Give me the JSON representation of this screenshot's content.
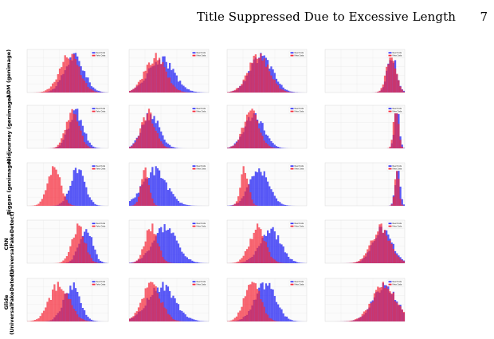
{
  "header": {
    "running_title": "Title Suppressed Due to Excessive Length",
    "page_number": "7"
  },
  "figure": {
    "legend": [
      "Real Data",
      "Fake Data"
    ],
    "colors": {
      "real": "#3b3bf5",
      "fake": "#f52a3a",
      "overlap": "#8e1a44"
    },
    "rows": [
      {
        "label": "ADM (genimage)"
      },
      {
        "label": "Midjourney (genimage)"
      },
      {
        "label": "Biggan (genimage)"
      },
      {
        "label": "CRN\n(UniversalFakeDetect)"
      },
      {
        "label": "Glide\n(UniversalFakeDetect)"
      }
    ],
    "chart_data": [
      {
        "type": "histogram",
        "row": 0,
        "col": 0,
        "real": {
          "mean": 0.58,
          "sd": 0.12
        },
        "fake": {
          "mean": 0.52,
          "sd": 0.12
        }
      },
      {
        "type": "histogram",
        "row": 0,
        "col": 1,
        "real": {
          "mean": 0.4,
          "sd": 0.16
        },
        "fake": {
          "mean": 0.33,
          "sd": 0.13
        }
      },
      {
        "type": "histogram",
        "row": 0,
        "col": 2,
        "real": {
          "mean": 0.43,
          "sd": 0.14
        },
        "fake": {
          "mean": 0.4,
          "sd": 0.13
        }
      },
      {
        "type": "histogram",
        "row": 0,
        "col": 3,
        "real": {
          "mean": 0.84,
          "sd": 0.06
        },
        "fake": {
          "mean": 0.83,
          "sd": 0.06
        }
      },
      {
        "type": "histogram",
        "row": 1,
        "col": 0,
        "real": {
          "mean": 0.6,
          "sd": 0.09
        },
        "fake": {
          "mean": 0.56,
          "sd": 0.08
        }
      },
      {
        "type": "histogram",
        "row": 1,
        "col": 1,
        "real": {
          "mean": 0.27,
          "sd": 0.11
        },
        "fake": {
          "mean": 0.24,
          "sd": 0.09
        }
      },
      {
        "type": "histogram",
        "row": 1,
        "col": 2,
        "real": {
          "mean": 0.34,
          "sd": 0.12
        },
        "fake": {
          "mean": 0.3,
          "sd": 0.1
        }
      },
      {
        "type": "histogram",
        "row": 1,
        "col": 3,
        "real": {
          "mean": 0.9,
          "sd": 0.03
        },
        "fake": {
          "mean": 0.89,
          "sd": 0.03
        }
      },
      {
        "type": "histogram",
        "row": 2,
        "col": 0,
        "real": {
          "mean": 0.62,
          "sd": 0.09
        },
        "fake": {
          "mean": 0.33,
          "sd": 0.08
        }
      },
      {
        "type": "histogram",
        "row": 2,
        "col": 1,
        "real": {
          "mean": 0.32,
          "sd": 0.15
        },
        "fake": {
          "mean": 0.2,
          "sd": 0.05
        }
      },
      {
        "type": "histogram",
        "row": 2,
        "col": 2,
        "real": {
          "mean": 0.4,
          "sd": 0.12
        },
        "fake": {
          "mean": 0.22,
          "sd": 0.05
        }
      },
      {
        "type": "histogram",
        "row": 2,
        "col": 3,
        "real": {
          "mean": 0.91,
          "sd": 0.03
        },
        "fake": {
          "mean": 0.9,
          "sd": 0.025
        }
      },
      {
        "type": "histogram",
        "row": 3,
        "col": 0,
        "real": {
          "mean": 0.72,
          "sd": 0.08
        },
        "fake": {
          "mean": 0.63,
          "sd": 0.08
        }
      },
      {
        "type": "histogram",
        "row": 3,
        "col": 1,
        "real": {
          "mean": 0.45,
          "sd": 0.15
        },
        "fake": {
          "mean": 0.28,
          "sd": 0.08
        }
      },
      {
        "type": "histogram",
        "row": 3,
        "col": 2,
        "real": {
          "mean": 0.54,
          "sd": 0.13
        },
        "fake": {
          "mean": 0.38,
          "sd": 0.1
        }
      },
      {
        "type": "histogram",
        "row": 3,
        "col": 3,
        "real": {
          "mean": 0.72,
          "sd": 0.12
        },
        "fake": {
          "mean": 0.7,
          "sd": 0.12
        }
      },
      {
        "type": "histogram",
        "row": 4,
        "col": 0,
        "real": {
          "mean": 0.55,
          "sd": 0.1
        },
        "fake": {
          "mean": 0.4,
          "sd": 0.12
        }
      },
      {
        "type": "histogram",
        "row": 4,
        "col": 1,
        "real": {
          "mean": 0.4,
          "sd": 0.17
        },
        "fake": {
          "mean": 0.28,
          "sd": 0.12
        }
      },
      {
        "type": "histogram",
        "row": 4,
        "col": 2,
        "real": {
          "mean": 0.48,
          "sd": 0.13
        },
        "fake": {
          "mean": 0.32,
          "sd": 0.1
        }
      },
      {
        "type": "histogram",
        "row": 4,
        "col": 3,
        "real": {
          "mean": 0.75,
          "sd": 0.15
        },
        "fake": {
          "mean": 0.74,
          "sd": 0.15
        }
      }
    ]
  }
}
